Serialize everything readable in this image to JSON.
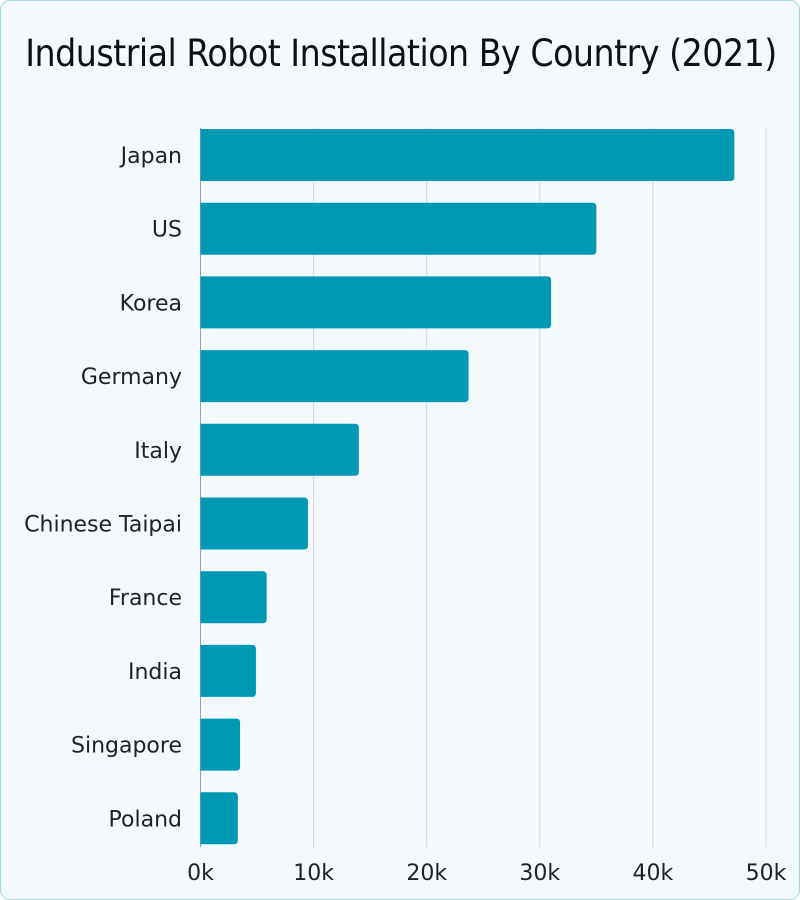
{
  "chart_data": {
    "type": "bar",
    "orientation": "horizontal",
    "title": "Industrial Robot Installation By Country (2021)",
    "categories": [
      "Japan",
      "US",
      "Korea",
      "Germany",
      "Italy",
      "Chinese Taipai",
      "France",
      "India",
      "Singapore",
      "Poland"
    ],
    "values": [
      47200,
      35000,
      31000,
      23700,
      14000,
      9500,
      5850,
      4900,
      3500,
      3300
    ],
    "xlim": [
      0,
      50000
    ],
    "x_ticks": [
      0,
      10000,
      20000,
      30000,
      40000,
      50000
    ],
    "x_tick_labels": [
      "0k",
      "10k",
      "20k",
      "30k",
      "40k",
      "50k"
    ],
    "xlabel": "",
    "ylabel": "",
    "grid": "vertical",
    "bar_color": "#0099b3"
  }
}
